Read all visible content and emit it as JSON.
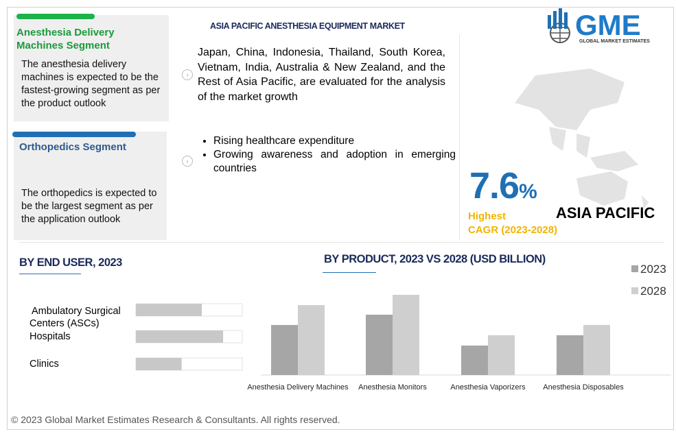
{
  "header": {
    "title": "ASIA PACIFIC ANESTHESIA EQUIPMENT MARKET"
  },
  "logo": {
    "name": "GME",
    "tagline": "GLOBAL MARKET ESTIMATES"
  },
  "segments": [
    {
      "title": "Anesthesia Delivery Machines Segment",
      "text": "The anesthesia delivery machines is expected to be the fastest-growing segment as per the product outlook"
    },
    {
      "title": "Orthopedics Segment",
      "text": "The orthopedics is expected to be the largest segment as per the application outlook"
    }
  ],
  "countries": "Japan, China, Indonesia, Thailand, South Korea, Vietnam, India, Australia & New Zealand, and the Rest of Asia Pacific, are evaluated for the analysis of the market growth",
  "drivers": [
    "Rising healthcare expenditure",
    "Growing awareness and adoption in emerging countries"
  ],
  "cagr": {
    "value": 7.6,
    "unit": "%",
    "label": "Highest",
    "period": "CAGR (2023-2028)"
  },
  "region": "ASIA PACIFIC",
  "chart_data": [
    {
      "type": "hbar",
      "title": "BY END USER, 2023",
      "categories": [
        "Ambulatory Surgical Centers (ASCs)",
        "Hospitals",
        "Clinics"
      ],
      "values": [
        62,
        82,
        43
      ],
      "color": "#c8c8c8",
      "xlim": [
        0,
        100
      ]
    },
    {
      "type": "bar",
      "title": "BY PRODUCT, 2023 VS 2028 (USD BILLION)",
      "categories": [
        "Anesthesia Delivery Machines",
        "Anesthesia Monitors",
        "Anesthesia Vaporizers",
        "Anesthesia Disposables"
      ],
      "series": [
        {
          "name": "2023",
          "color": "#a6a6a6",
          "values": [
            73,
            88,
            43,
            58
          ]
        },
        {
          "name": "2028",
          "color": "#cfcfcf",
          "values": [
            102,
            117,
            58,
            73
          ]
        }
      ],
      "ylim": [
        0,
        120
      ],
      "legend": "top-right"
    }
  ],
  "footer": "© 2023 Global Market Estimates Research & Consultants. All rights reserved."
}
